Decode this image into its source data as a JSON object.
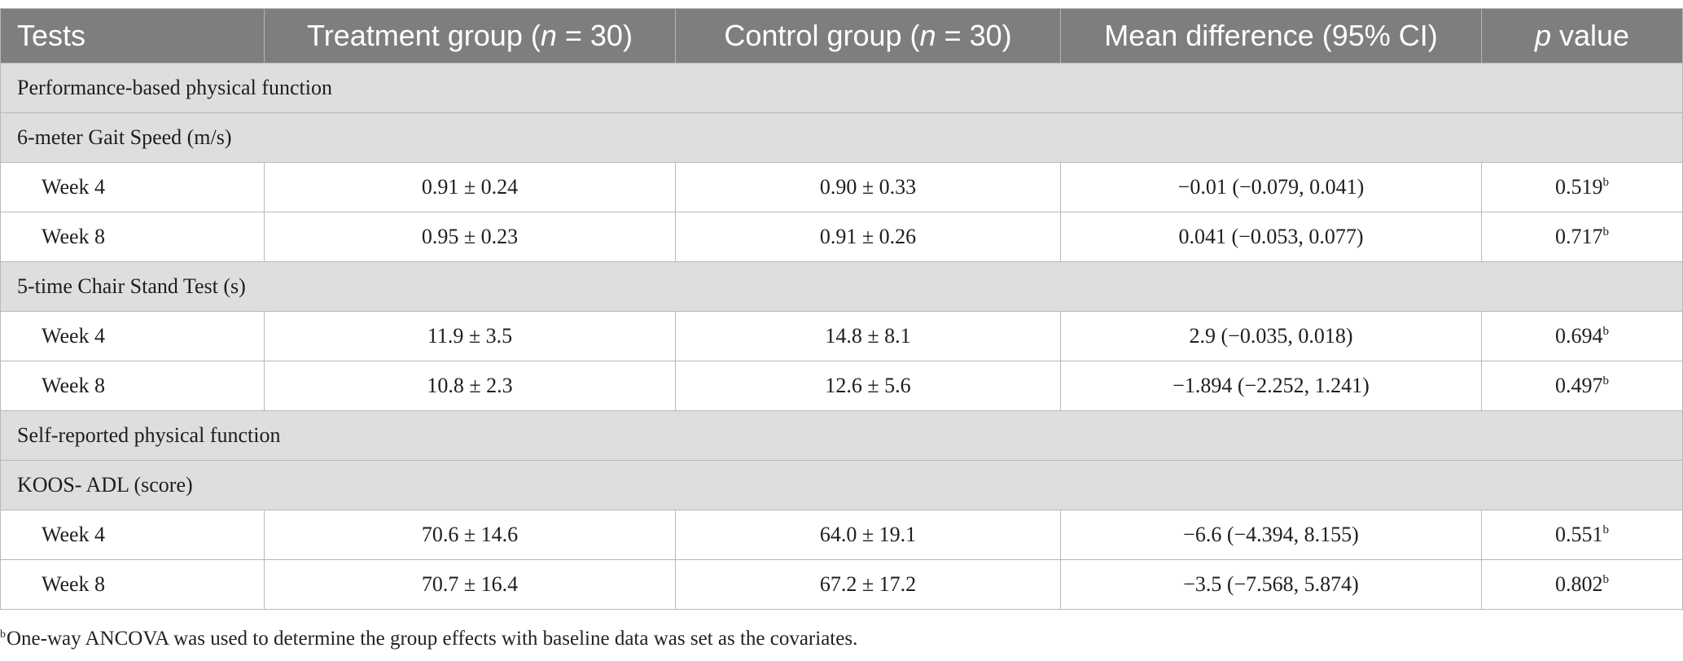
{
  "header": {
    "tests": "Tests",
    "treatment_prefix": "Treatment group (",
    "control_prefix": "Control group (",
    "n_symbol": "n",
    "n_value": " = 30)",
    "mean_difference": "Mean difference (95% CI)",
    "p_symbol": "p",
    "p_suffix": " value"
  },
  "sections": [
    {
      "title": "Performance-based physical function",
      "groups": [
        {
          "title": "6-meter Gait Speed (m/s)",
          "rows": [
            {
              "label": "Week 4",
              "treatment": "0.91 ± 0.24",
              "control": "0.90 ± 0.33",
              "mean_diff": "−0.01 (−0.079, 0.041)",
              "p": "0.519",
              "p_note": "b"
            },
            {
              "label": "Week 8",
              "treatment": "0.95 ± 0.23",
              "control": "0.91 ± 0.26",
              "mean_diff": "0.041 (−0.053, 0.077)",
              "p": "0.717",
              "p_note": "b"
            }
          ]
        },
        {
          "title": "5-time Chair Stand Test (s)",
          "rows": [
            {
              "label": "Week 4",
              "treatment": "11.9 ± 3.5",
              "control": "14.8 ± 8.1",
              "mean_diff": "2.9 (−0.035, 0.018)",
              "p": "0.694",
              "p_note": "b"
            },
            {
              "label": "Week 8",
              "treatment": "10.8 ± 2.3",
              "control": "12.6 ± 5.6",
              "mean_diff": "−1.894 (−2.252, 1.241)",
              "p": "0.497",
              "p_note": "b"
            }
          ]
        }
      ]
    },
    {
      "title": "Self-reported physical function",
      "groups": [
        {
          "title": "KOOS- ADL (score)",
          "rows": [
            {
              "label": "Week 4",
              "treatment": "70.6 ± 14.6",
              "control": "64.0 ± 19.1",
              "mean_diff": "−6.6 (−4.394, 8.155)",
              "p": "0.551",
              "p_note": "b"
            },
            {
              "label": "Week 8",
              "treatment": "70.7 ± 16.4",
              "control": "67.2 ± 17.2",
              "mean_diff": "−3.5 (−7.568, 5.874)",
              "p": "0.802",
              "p_note": "b"
            }
          ]
        }
      ]
    }
  ],
  "footnote": {
    "marker": "b",
    "text": "One-way ANCOVA was used to determine the group effects with baseline data was set as the covariates."
  }
}
